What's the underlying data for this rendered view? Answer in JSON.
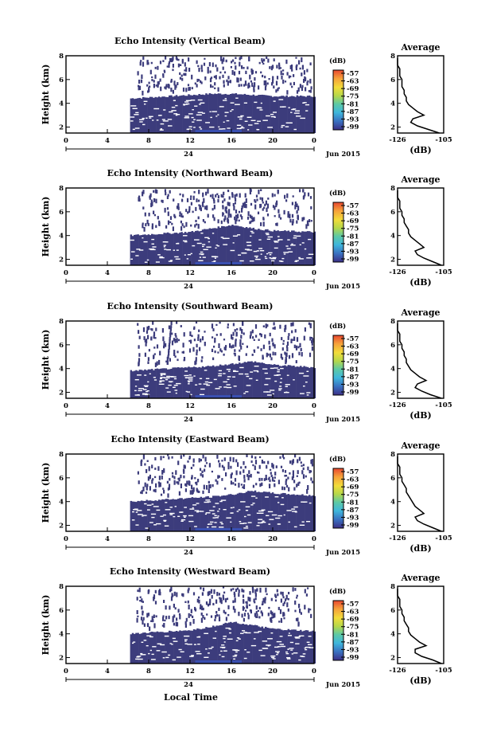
{
  "figure": {
    "xlabel": "Local Time",
    "date_label": "Jun 2015",
    "day_label": "24",
    "colorbar_unit": "(dB)",
    "colorbar_ticks": [
      "-57",
      "-63",
      "-69",
      "-75",
      "-81",
      "-87",
      "-93",
      "-99"
    ],
    "profile_title": "Average",
    "profile_xlabel": "(dB)",
    "colors": {
      "colormap": [
        "#3c2f86",
        "#3a6fc0",
        "#3fb7dc",
        "#5cc9a6",
        "#b5d84a",
        "#f2dc3a",
        "#f6a13a",
        "#e8472f"
      ],
      "echo": "#3c3c7c",
      "profile_line": "#000000"
    }
  },
  "chart_data": [
    {
      "type": "heatmap",
      "title": "Echo Intensity (Vertical Beam)",
      "xlabel": "",
      "ylabel": "Height (km)",
      "xlim": [
        0,
        24
      ],
      "ylim": [
        1.5,
        8
      ],
      "x_ticks": [
        "0",
        "4",
        "8",
        "12",
        "16",
        "20",
        "0"
      ],
      "y_ticks": [
        "2",
        "4",
        "6",
        "8"
      ],
      "z_unit": "dB",
      "z_range": [
        -99,
        -57
      ],
      "echo_onset_hour": 6.2,
      "layer_top_km": [
        4.4,
        4.5,
        4.6,
        4.7,
        4.8,
        4.8,
        4.7,
        4.6,
        4.6
      ],
      "layer_top_hours": [
        6,
        8,
        10,
        12,
        14,
        16,
        18,
        20,
        24
      ],
      "profile": {
        "title": "Average",
        "xlabel": "(dB)",
        "xlim": [
          -126,
          -105
        ],
        "ylim": [
          1.5,
          8
        ],
        "x_ticks": [
          "-126",
          "-105"
        ],
        "y_ticks": [
          "2",
          "4",
          "6",
          "8"
        ],
        "height_km": [
          1.5,
          1.8,
          2.1,
          2.4,
          2.7,
          3.0,
          3.3,
          3.6,
          3.9,
          4.2,
          4.5,
          4.8,
          5.1,
          5.4,
          5.7,
          6.0,
          6.3,
          6.6,
          6.9,
          7.2,
          7.5,
          7.8
        ],
        "values_db": [
          -107,
          -112,
          -117,
          -120,
          -119,
          -114,
          -117,
          -119,
          -121,
          -122,
          -122,
          -123,
          -123,
          -124,
          -124,
          -124,
          -125,
          -125,
          -125,
          -126,
          -126,
          -126
        ]
      }
    },
    {
      "type": "heatmap",
      "title": "Echo Intensity (Northward Beam)",
      "xlabel": "",
      "ylabel": "Height (km)",
      "xlim": [
        0,
        24
      ],
      "ylim": [
        1.5,
        8
      ],
      "x_ticks": [
        "0",
        "4",
        "8",
        "12",
        "16",
        "20",
        "0"
      ],
      "y_ticks": [
        "2",
        "4",
        "6",
        "8"
      ],
      "z_unit": "dB",
      "z_range": [
        -99,
        -57
      ],
      "echo_onset_hour": 6.2,
      "layer_top_km": [
        4.0,
        4.1,
        4.2,
        4.3,
        4.6,
        4.9,
        4.6,
        4.4,
        4.3
      ],
      "layer_top_hours": [
        6,
        8,
        10,
        12,
        14,
        16,
        18,
        20,
        24
      ],
      "profile": {
        "title": "Average",
        "xlabel": "(dB)",
        "xlim": [
          -126,
          -105
        ],
        "ylim": [
          1.5,
          8
        ],
        "x_ticks": [
          "-126",
          "-105"
        ],
        "y_ticks": [
          "2",
          "4",
          "6",
          "8"
        ],
        "height_km": [
          1.5,
          1.8,
          2.1,
          2.4,
          2.7,
          3.0,
          3.3,
          3.6,
          3.9,
          4.2,
          4.5,
          4.8,
          5.1,
          5.4,
          5.7,
          6.0,
          6.3,
          6.6,
          6.9,
          7.2,
          7.5,
          7.8
        ],
        "values_db": [
          -106,
          -110,
          -114,
          -117,
          -118,
          -114,
          -116,
          -118,
          -120,
          -121,
          -121,
          -122,
          -123,
          -123,
          -124,
          -124,
          -125,
          -125,
          -125,
          -126,
          -126,
          -126
        ]
      }
    },
    {
      "type": "heatmap",
      "title": "Echo Intensity (Southward Beam)",
      "xlabel": "",
      "ylabel": "Height (km)",
      "xlim": [
        0,
        24
      ],
      "ylim": [
        1.5,
        8
      ],
      "x_ticks": [
        "0",
        "4",
        "8",
        "12",
        "16",
        "20",
        "0"
      ],
      "y_ticks": [
        "2",
        "4",
        "6",
        "8"
      ],
      "z_unit": "dB",
      "z_range": [
        -99,
        -57
      ],
      "echo_onset_hour": 6.2,
      "layer_top_km": [
        3.8,
        3.9,
        4.0,
        4.1,
        4.2,
        4.4,
        4.6,
        4.3,
        4.1
      ],
      "layer_top_hours": [
        6,
        8,
        10,
        12,
        14,
        16,
        18,
        20,
        24
      ],
      "profile": {
        "title": "Average",
        "xlabel": "(dB)",
        "xlim": [
          -126,
          -105
        ],
        "ylim": [
          1.5,
          8
        ],
        "x_ticks": [
          "-126",
          "-105"
        ],
        "y_ticks": [
          "2",
          "4",
          "6",
          "8"
        ],
        "height_km": [
          1.5,
          1.8,
          2.1,
          2.4,
          2.7,
          3.0,
          3.3,
          3.6,
          3.9,
          4.2,
          4.5,
          4.8,
          5.1,
          5.4,
          5.7,
          6.0,
          6.3,
          6.6,
          6.9,
          7.2,
          7.5,
          7.8
        ],
        "values_db": [
          -106,
          -111,
          -115,
          -118,
          -117,
          -113,
          -116,
          -118,
          -120,
          -121,
          -122,
          -122,
          -123,
          -123,
          -124,
          -124,
          -125,
          -125,
          -125,
          -126,
          -126,
          -126
        ]
      }
    },
    {
      "type": "heatmap",
      "title": "Echo Intensity (Eastward Beam)",
      "xlabel": "",
      "ylabel": "Height (km)",
      "xlim": [
        0,
        24
      ],
      "ylim": [
        1.5,
        8
      ],
      "x_ticks": [
        "0",
        "4",
        "8",
        "12",
        "16",
        "20",
        "0"
      ],
      "y_ticks": [
        "2",
        "4",
        "6",
        "8"
      ],
      "z_unit": "dB",
      "z_range": [
        -99,
        -57
      ],
      "echo_onset_hour": 6.2,
      "layer_top_km": [
        4.0,
        4.1,
        4.2,
        4.3,
        4.4,
        4.6,
        4.9,
        4.7,
        4.5
      ],
      "layer_top_hours": [
        6,
        8,
        10,
        12,
        14,
        16,
        18,
        20,
        24
      ],
      "profile": {
        "title": "Average",
        "xlabel": "(dB)",
        "xlim": [
          -126,
          -105
        ],
        "ylim": [
          1.5,
          8
        ],
        "x_ticks": [
          "-126",
          "-105"
        ],
        "y_ticks": [
          "2",
          "4",
          "6",
          "8"
        ],
        "height_km": [
          1.5,
          1.8,
          2.1,
          2.4,
          2.7,
          3.0,
          3.3,
          3.6,
          3.9,
          4.2,
          4.5,
          4.8,
          5.1,
          5.4,
          5.7,
          6.0,
          6.3,
          6.6,
          6.9,
          7.2,
          7.5,
          7.8
        ],
        "values_db": [
          -106,
          -110,
          -114,
          -117,
          -118,
          -114,
          -116,
          -118,
          -119,
          -120,
          -121,
          -122,
          -122,
          -123,
          -124,
          -124,
          -125,
          -125,
          -125,
          -126,
          -126,
          -126
        ]
      }
    },
    {
      "type": "heatmap",
      "title": "Echo Intensity (Westward Beam)",
      "xlabel": "Local Time",
      "ylabel": "Height (km)",
      "xlim": [
        0,
        24
      ],
      "ylim": [
        1.5,
        8
      ],
      "x_ticks": [
        "0",
        "4",
        "8",
        "12",
        "16",
        "20",
        "0"
      ],
      "y_ticks": [
        "2",
        "4",
        "6",
        "8"
      ],
      "z_unit": "dB",
      "z_range": [
        -99,
        -57
      ],
      "echo_onset_hour": 6.2,
      "layer_top_km": [
        4.0,
        4.1,
        4.2,
        4.3,
        4.6,
        5.0,
        4.7,
        4.4,
        4.2
      ],
      "layer_top_hours": [
        6,
        8,
        10,
        12,
        14,
        16,
        18,
        20,
        24
      ],
      "profile": {
        "title": "Average",
        "xlabel": "(dB)",
        "xlim": [
          -126,
          -105
        ],
        "ylim": [
          1.5,
          8
        ],
        "x_ticks": [
          "-126",
          "-105"
        ],
        "y_ticks": [
          "2",
          "4",
          "6",
          "8"
        ],
        "height_km": [
          1.5,
          1.8,
          2.1,
          2.4,
          2.7,
          3.0,
          3.3,
          3.6,
          3.9,
          4.2,
          4.5,
          4.8,
          5.1,
          5.4,
          5.7,
          6.0,
          6.3,
          6.6,
          6.9,
          7.2,
          7.5,
          7.8
        ],
        "values_db": [
          -106,
          -110,
          -115,
          -118,
          -118,
          -113,
          -116,
          -118,
          -120,
          -121,
          -121,
          -122,
          -123,
          -123,
          -124,
          -124,
          -125,
          -125,
          -125,
          -126,
          -126,
          -126
        ]
      }
    }
  ]
}
